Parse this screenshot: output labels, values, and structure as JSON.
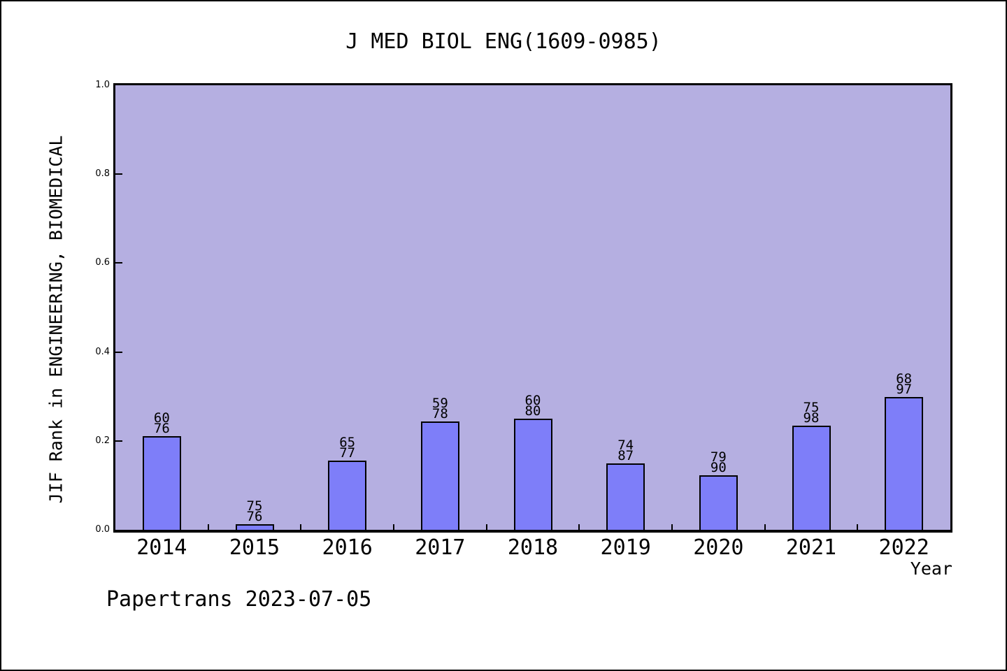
{
  "footer": {
    "text": "Papertrans 2023-07-05"
  },
  "chart_data": {
    "type": "bar",
    "title": "J MED BIOL ENG(1609-0985)",
    "xlabel": "Year",
    "ylabel": "JIF Rank in ENGINEERING, BIOMEDICAL",
    "ylim": [
      0.0,
      1.0
    ],
    "yticks": [
      0.0,
      0.2,
      0.4,
      0.6,
      0.8,
      1.0
    ],
    "ytick_labels": [
      "0.0",
      "0.2",
      "0.4",
      "0.6",
      "0.8",
      "1.0"
    ],
    "grid": false,
    "legend": null,
    "categories": [
      "2014",
      "2015",
      "2016",
      "2017",
      "2018",
      "2019",
      "2020",
      "2021",
      "2022"
    ],
    "values": [
      0.2105,
      0.0132,
      0.1558,
      0.2436,
      0.25,
      0.1494,
      0.1222,
      0.2347,
      0.299
    ],
    "bar_labels": [
      [
        "60",
        "76"
      ],
      [
        "75",
        "76"
      ],
      [
        "65",
        "77"
      ],
      [
        "59",
        "78"
      ],
      [
        "60",
        "80"
      ],
      [
        "74",
        "87"
      ],
      [
        "79",
        "90"
      ],
      [
        "75",
        "98"
      ],
      [
        "68",
        "97"
      ]
    ],
    "note": "bar height = 1 - rank/total, labels show rank over total",
    "colors": {
      "bar_fill": "#7E7EF9",
      "bar_edge": "#000000",
      "plot_bg": "#B5AFE1",
      "page_bg": "#FFFFFF",
      "text": "#000000"
    }
  }
}
